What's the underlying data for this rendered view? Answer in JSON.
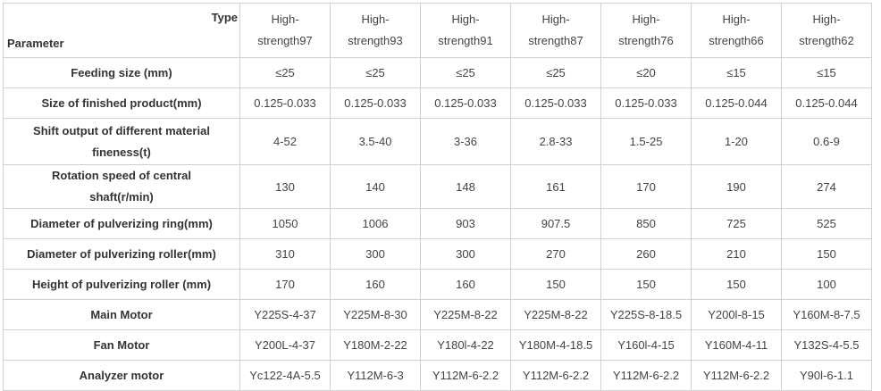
{
  "table": {
    "corner": {
      "top": "Type",
      "bottom": "Parameter"
    },
    "columns": [
      "High-strength97",
      "High-strength93",
      "High-strength91",
      "High-strength87",
      "High-strength76",
      "High-strength66",
      "High-strength62"
    ],
    "rows": [
      {
        "label": "Feeding size (mm)",
        "cells": [
          "≤25",
          "≤25",
          "≤25",
          "≤25",
          "≤20",
          "≤15",
          "≤15"
        ]
      },
      {
        "label": "Size of finished product(mm)",
        "cells": [
          "0.125-0.033",
          "0.125-0.033",
          "0.125-0.033",
          "0.125-0.033",
          "0.125-0.033",
          "0.125-0.044",
          "0.125-0.044"
        ]
      },
      {
        "label": "Shift output of different material fineness(t)",
        "cells": [
          "4-52",
          "3.5-40",
          "3-36",
          "2.8-33",
          "1.5-25",
          "1-20",
          "0.6-9"
        ]
      },
      {
        "label": "Rotation speed of central shaft(r/min)",
        "cells": [
          "130",
          "140",
          "148",
          "161",
          "170",
          "190",
          "274"
        ]
      },
      {
        "label": "Diameter of pulverizing ring(mm)",
        "cells": [
          "1050",
          "1006",
          "903",
          "907.5",
          "850",
          "725",
          "525"
        ]
      },
      {
        "label": "Diameter of pulverizing roller(mm)",
        "cells": [
          "310",
          "300",
          "300",
          "270",
          "260",
          "210",
          "150"
        ]
      },
      {
        "label": "Height of pulverizing roller (mm)",
        "cells": [
          "170",
          "160",
          "160",
          "150",
          "150",
          "150",
          "100"
        ]
      },
      {
        "label": "Main Motor",
        "cells": [
          "Y225S-4-37",
          "Y225M-8-30",
          "Y225M-8-22",
          "Y225M-8-22",
          "Y225S-8-18.5",
          "Y200l-8-15",
          "Y160M-8-7.5"
        ]
      },
      {
        "label": "Fan Motor",
        "cells": [
          "Y200L-4-37",
          "Y180M-2-22",
          "Y180l-4-22",
          "Y180M-4-18.5",
          "Y160l-4-15",
          "Y160M-4-11",
          "Y132S-4-5.5"
        ]
      },
      {
        "label": "Analyzer motor",
        "cells": [
          "Yc122-4A-5.5",
          "Y112M-6-3",
          "Y112M-6-2.2",
          "Y112M-6-2.2",
          "Y112M-6-2.2",
          "Y112M-6-2.2",
          "Y90l-6-1.1"
        ]
      }
    ]
  }
}
